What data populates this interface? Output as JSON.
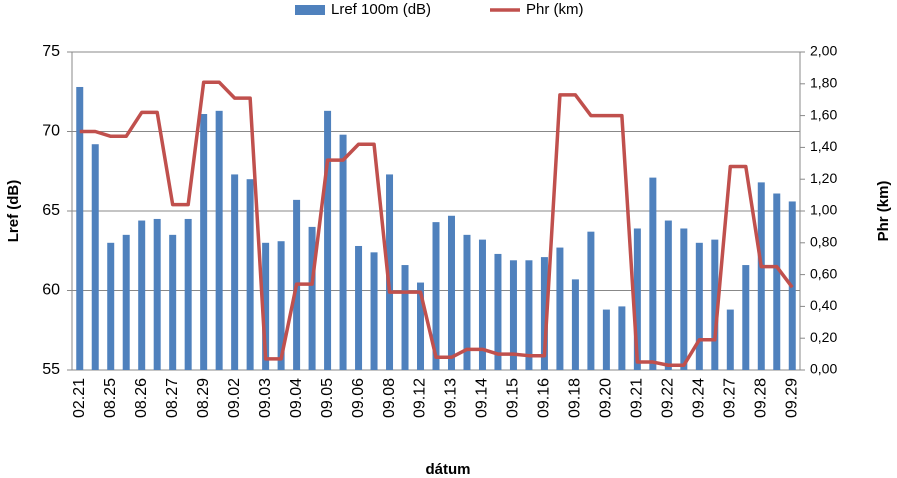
{
  "chart_data": {
    "type": "bar_line",
    "xlabel": "dátum",
    "ylabel": "Lref (dB)",
    "y2label": "Phr (km)",
    "categories": [
      "02.21",
      null,
      "08.25",
      null,
      "08.26",
      null,
      "08.27",
      null,
      "08.29",
      null,
      "09.02",
      null,
      "09.03",
      null,
      "09.04",
      null,
      "09.05",
      null,
      "09.06",
      null,
      "09.08",
      null,
      "09.12",
      null,
      "09.13",
      null,
      "09.14",
      null,
      "09.15",
      null,
      "09.16",
      null,
      "09.18",
      null,
      "09.20",
      null,
      "09.21",
      null,
      "09.22",
      null,
      "09.24",
      null,
      "09.27",
      null,
      "09.28",
      null,
      "09.29"
    ],
    "series": [
      {
        "name": "Lref 100m (dB)",
        "color": "#4f81bd",
        "type": "bar",
        "values": [
          72.8,
          69.2,
          63,
          63.5,
          64.4,
          64.5,
          63.5,
          64.5,
          71.1,
          71.3,
          67.3,
          67,
          63,
          63.1,
          65.7,
          64,
          71.3,
          69.8,
          62.8,
          62.4,
          67.3,
          61.6,
          60.5,
          64.3,
          64.7,
          63.5,
          63.2,
          62.3,
          61.9,
          61.9,
          62.1,
          62.7,
          60.7,
          63.7,
          58.8,
          59,
          63.9,
          67.1,
          64.4,
          63.9,
          63,
          63.2,
          58.8,
          61.6,
          66.8,
          66.1,
          65.6
        ]
      },
      {
        "name": "Phr (km)",
        "color": "#c0504d",
        "type": "line",
        "axis": "y2",
        "values": [
          1.5,
          1.5,
          1.47,
          1.47,
          1.62,
          1.62,
          1.04,
          1.04,
          1.81,
          1.81,
          1.71,
          1.71,
          0.07,
          0.07,
          0.54,
          0.54,
          1.32,
          1.32,
          1.42,
          1.42,
          0.49,
          0.49,
          0.49,
          0.08,
          0.08,
          0.13,
          0.13,
          0.1,
          0.1,
          0.09,
          0.09,
          1.73,
          1.73,
          1.6,
          1.6,
          1.6,
          0.05,
          0.05,
          0.03,
          0.03,
          0.19,
          0.19,
          1.28,
          1.28,
          0.65,
          0.65,
          0.52
        ]
      }
    ],
    "ylim": [
      55,
      75
    ],
    "yticks": [
      55,
      60,
      65,
      70,
      75
    ],
    "y2lim": [
      0,
      2
    ],
    "y2ticks": [
      {
        "value": 0,
        "label": "0,00"
      },
      {
        "value": 0.2,
        "label": "0,20"
      },
      {
        "value": 0.4,
        "label": "0,40"
      },
      {
        "value": 0.6,
        "label": "0,60"
      },
      {
        "value": 0.8,
        "label": "0,80"
      },
      {
        "value": 1,
        "label": "1,00"
      },
      {
        "value": 1.2,
        "label": "1,20"
      },
      {
        "value": 1.4,
        "label": "1,40"
      },
      {
        "value": 1.6,
        "label": "1,60"
      },
      {
        "value": 1.8,
        "label": "1,80"
      },
      {
        "value": 2,
        "label": "2,00"
      }
    ],
    "grid": true,
    "legend": "top"
  }
}
